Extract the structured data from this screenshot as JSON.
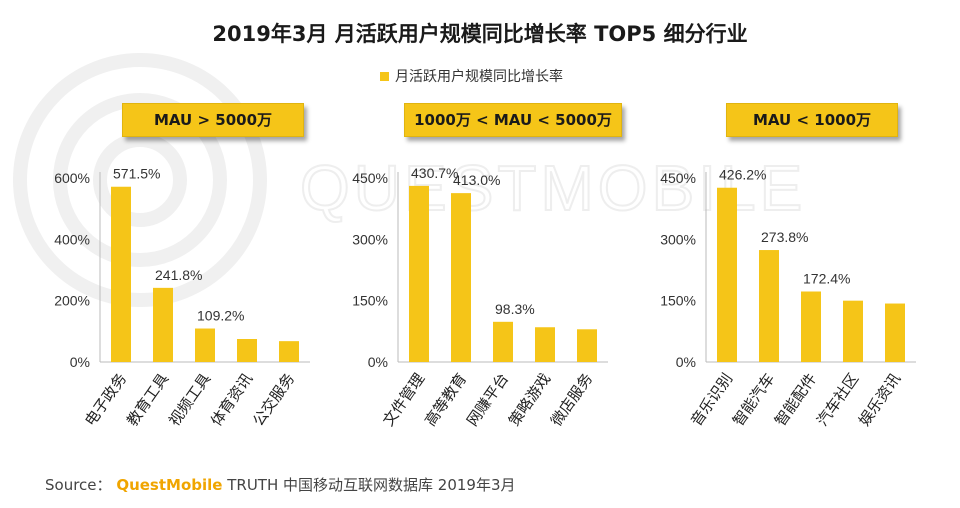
{
  "title": "2019年3月 月活跃用户规模同比增长率 TOP5 细分行业",
  "legend": {
    "label": "月活跃用户规模同比增长率"
  },
  "watermark": {
    "text": "QUESTMOBILE"
  },
  "colors": {
    "bar": "#F5C518",
    "box": "#F5C518",
    "brand": "#F0A500"
  },
  "chart_data": [
    {
      "type": "bar",
      "segment": "MAU > 5000万",
      "categories": [
        "电子政务",
        "教育工具",
        "视频工具",
        "体育资讯",
        "公交服务"
      ],
      "values": [
        571.5,
        241.8,
        109.2,
        75,
        68
      ],
      "data_labels": [
        "571.5%",
        "241.8%",
        "109.2%",
        "",
        ""
      ],
      "ylim": [
        0,
        600
      ],
      "yticks": [
        0,
        200,
        400,
        600
      ],
      "ytick_labels": [
        "0%",
        "200%",
        "400%",
        "600%"
      ]
    },
    {
      "type": "bar",
      "segment": "1000万 < MAU < 5000万",
      "categories": [
        "文件管理",
        "高等教育",
        "网赚平台",
        "策略游戏",
        "微店服务"
      ],
      "values": [
        430.7,
        413.0,
        98.3,
        85,
        80
      ],
      "data_labels": [
        "430.7%",
        "413.0%",
        "98.3%",
        "",
        ""
      ],
      "ylim": [
        0,
        450
      ],
      "yticks": [
        0,
        150,
        300,
        450
      ],
      "ytick_labels": [
        "0%",
        "150%",
        "300%",
        "450%"
      ]
    },
    {
      "type": "bar",
      "segment": "MAU < 1000万",
      "categories": [
        "音乐识别",
        "智能汽车",
        "智能配件",
        "汽车社区",
        "娱乐资讯"
      ],
      "values": [
        426.2,
        273.8,
        172.4,
        150,
        143
      ],
      "data_labels": [
        "426.2%",
        "273.8%",
        "172.4%",
        "",
        ""
      ],
      "ylim": [
        0,
        450
      ],
      "yticks": [
        0,
        150,
        300,
        450
      ],
      "ytick_labels": [
        "0%",
        "150%",
        "300%",
        "450%"
      ]
    }
  ],
  "source": {
    "prefix": "Source：",
    "brand": "QuestMobile",
    "rest": "TRUTH 中国移动互联网数据库 2019年3月"
  }
}
